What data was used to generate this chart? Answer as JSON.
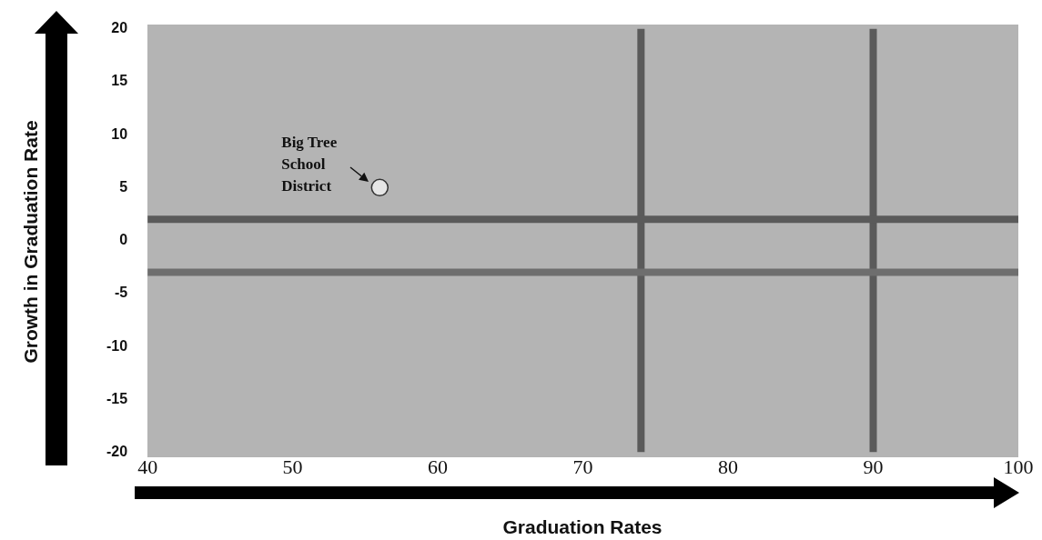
{
  "chart_data": {
    "type": "scatter",
    "xlabel": "Graduation Rates",
    "ylabel": "Growth in Graduation Rate",
    "series": [
      {
        "color": "#e6e6e6",
        "x": [
          56
        ],
        "values": [
          5
        ]
      }
    ],
    "marker": "circle",
    "xlim": [
      40,
      100
    ],
    "xticks": [
      40,
      50,
      60,
      70,
      80,
      90,
      100
    ],
    "ylim": [
      -20,
      20
    ],
    "yticks": [
      -20,
      -15,
      -10,
      -5,
      0,
      5,
      10,
      15,
      20
    ],
    "ref_lines": [
      {
        "axis": "y",
        "value": 2,
        "color": "#5a5a5a"
      },
      {
        "axis": "y",
        "value": -3,
        "color": "#6e6e6e"
      },
      {
        "axis": "x",
        "value": 74,
        "color": "#5a5a5a"
      },
      {
        "axis": "x",
        "value": 90,
        "color": "#5a5a5a"
      }
    ],
    "annotations": [
      {
        "text": "Big Tree School District",
        "x": 56,
        "y": 5
      }
    ]
  }
}
